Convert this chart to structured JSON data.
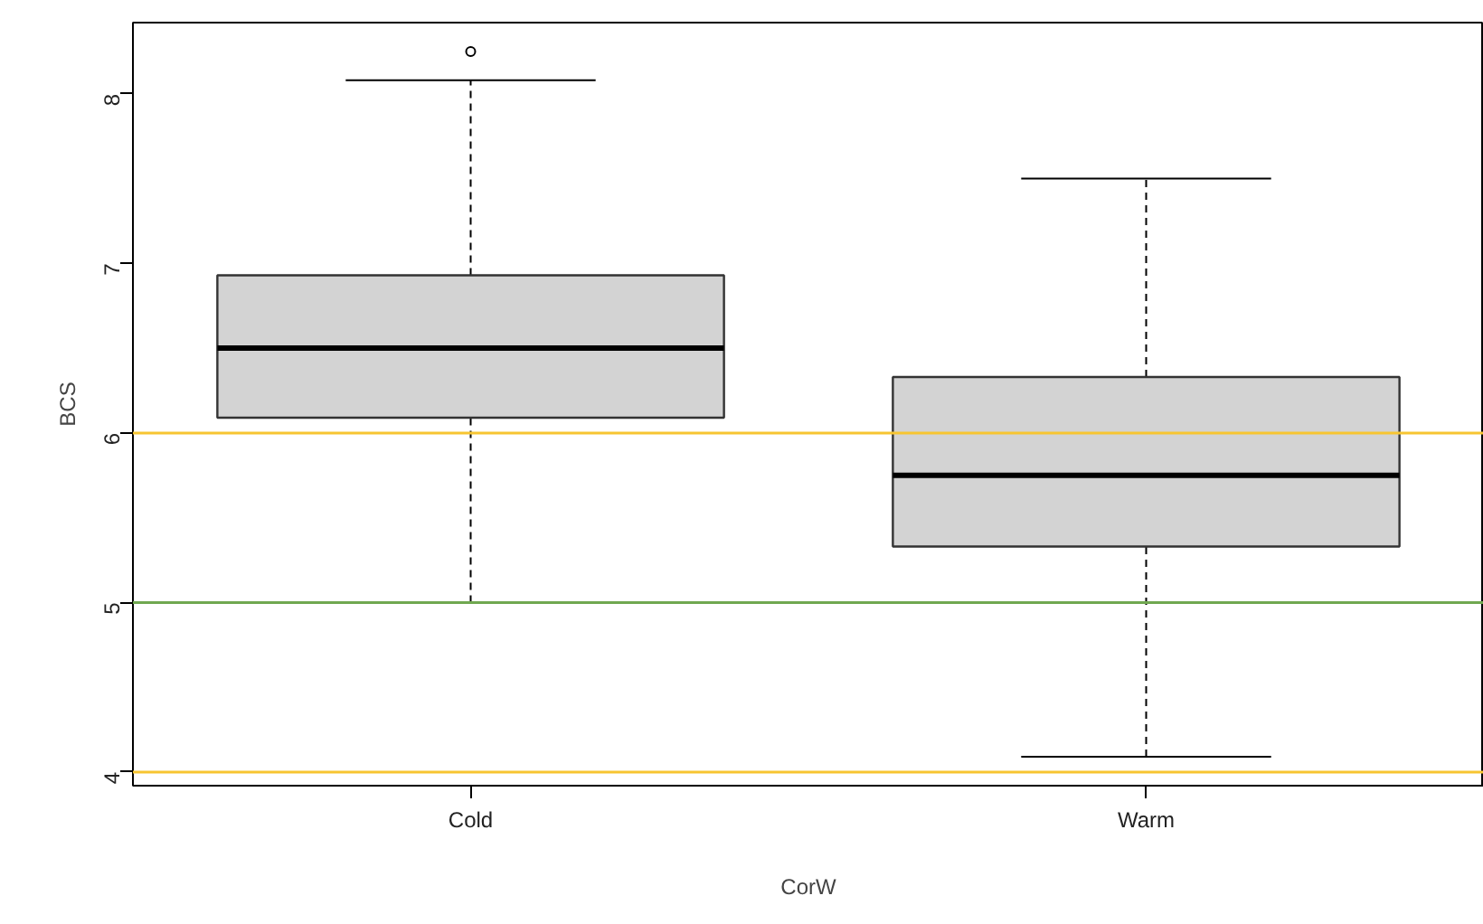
{
  "chart_data": {
    "type": "box",
    "xlabel": "CorW",
    "ylabel": "BCS",
    "categories": [
      "Cold",
      "Warm"
    ],
    "boxes": [
      {
        "low": 5.0,
        "q1": 6.09,
        "median": 6.5,
        "q3": 6.93,
        "high": 8.08,
        "outliers": [
          8.25
        ]
      },
      {
        "low": 4.09,
        "q1": 5.33,
        "median": 5.75,
        "q3": 6.33,
        "high": 7.5
      }
    ],
    "color": "#d3d3d3",
    "ylim": [
      3.92,
      8.42
    ],
    "yticks": [
      4,
      5,
      6,
      7,
      8
    ],
    "ref_lines": [
      {
        "axis": "y",
        "value": 6,
        "color": "#f7c531"
      },
      {
        "axis": "y",
        "value": 5,
        "color": "#70a850"
      },
      {
        "axis": "y",
        "value": 4,
        "color": "#f7c531"
      }
    ],
    "grid": false
  }
}
